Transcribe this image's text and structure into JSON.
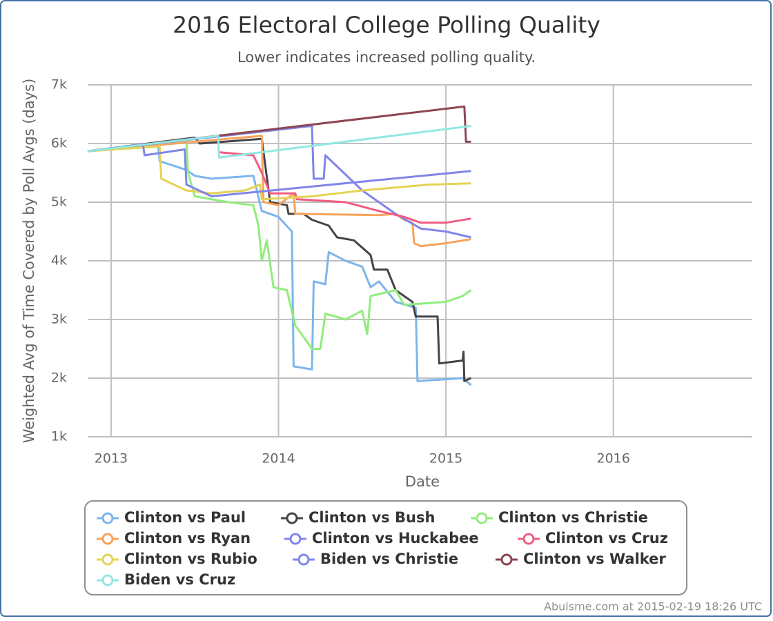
{
  "chart_data": {
    "type": "line",
    "title": "2016 Electoral College Polling Quality",
    "subtitle": "Lower indicates increased polling quality.",
    "x_label": "Date",
    "y_label": "Weighted Avg of Time Covered by Poll Avgs (days)",
    "xlim": [
      2012.86,
      2016.83
    ],
    "xticks": [
      2013,
      2014,
      2015,
      2016
    ],
    "ylim": [
      1000,
      7000
    ],
    "yticks": [
      {
        "value": 1000,
        "label": "1k"
      },
      {
        "value": 2000,
        "label": "2k"
      },
      {
        "value": 3000,
        "label": "3k"
      },
      {
        "value": 4000,
        "label": "4k"
      },
      {
        "value": 5000,
        "label": "5k"
      },
      {
        "value": 6000,
        "label": "6k"
      },
      {
        "value": 7000,
        "label": "7k"
      }
    ],
    "grid": true,
    "legend": "bottom",
    "series": [
      {
        "name": "Clinton vs Paul",
        "color": "#7cb5ec",
        "x": [
          2012.86,
          2013.28,
          2013.29,
          2013.45,
          2013.5,
          2013.6,
          2013.85,
          2013.9,
          2014.0,
          2014.08,
          2014.09,
          2014.2,
          2014.21,
          2014.28,
          2014.3,
          2014.4,
          2014.5,
          2014.55,
          2014.6,
          2014.7,
          2014.82,
          2014.83,
          2015.1,
          2015.15
        ],
        "values": [
          5870,
          6000,
          5700,
          5550,
          5450,
          5400,
          5450,
          4850,
          4750,
          4500,
          2200,
          2150,
          3650,
          3600,
          4150,
          4000,
          3900,
          3550,
          3650,
          3300,
          3200,
          1950,
          2000,
          1880
        ]
      },
      {
        "name": "Clinton vs Bush",
        "color": "#434348",
        "x": [
          2012.86,
          2013.5,
          2013.53,
          2013.9,
          2013.95,
          2014.05,
          2014.06,
          2014.15,
          2014.2,
          2014.3,
          2014.35,
          2014.45,
          2014.55,
          2014.57,
          2014.65,
          2014.7,
          2014.8,
          2014.82,
          2014.95,
          2014.96,
          2015.1,
          2015.105,
          2015.11,
          2015.15
        ],
        "values": [
          5870,
          6100,
          6000,
          6080,
          5000,
          4950,
          4800,
          4800,
          4700,
          4600,
          4400,
          4350,
          4100,
          3850,
          3850,
          3500,
          3300,
          3050,
          3050,
          2250,
          2300,
          2450,
          1950,
          2000
        ]
      },
      {
        "name": "Clinton vs Christie",
        "color": "#90ed7d",
        "x": [
          2012.86,
          2013.45,
          2013.46,
          2013.5,
          2013.7,
          2013.85,
          2013.88,
          2013.9,
          2013.93,
          2013.97,
          2014.05,
          2014.1,
          2014.2,
          2014.25,
          2014.28,
          2014.4,
          2014.5,
          2014.53,
          2014.55,
          2014.7,
          2014.75,
          2015.0,
          2015.1,
          2015.15
        ],
        "values": [
          5870,
          6050,
          5500,
          5100,
          5000,
          4950,
          4600,
          4000,
          4350,
          3550,
          3500,
          2900,
          2500,
          2500,
          3100,
          3000,
          3150,
          2750,
          3400,
          3500,
          3250,
          3300,
          3400,
          3500
        ]
      },
      {
        "name": "Clinton vs Ryan",
        "color": "#f7a35c",
        "x": [
          2012.86,
          2013.9,
          2013.91,
          2014.0,
          2014.09,
          2014.1,
          2014.6,
          2014.7,
          2014.75,
          2014.8,
          2014.81,
          2014.85,
          2015.0,
          2015.15
        ],
        "values": [
          5870,
          6130,
          5000,
          4950,
          5150,
          4800,
          4780,
          4800,
          4700,
          4650,
          4300,
          4250,
          4300,
          4370
        ]
      },
      {
        "name": "Clinton vs Huckabee",
        "color": "#8085e9",
        "x": [
          2012.86,
          2014.2,
          2014.21,
          2014.27,
          2014.28,
          2014.5,
          2014.7,
          2014.85,
          2015.0,
          2015.15
        ],
        "values": [
          5870,
          6300,
          5400,
          5400,
          5800,
          5200,
          4800,
          4550,
          4500,
          4400
        ]
      },
      {
        "name": "Clinton vs Cruz",
        "color": "#f15c80",
        "x": [
          2013.65,
          2013.85,
          2013.9,
          2013.95,
          2014.1,
          2014.11,
          2014.4,
          2014.6,
          2014.75,
          2014.85,
          2015.0,
          2015.15
        ],
        "values": [
          5850,
          5800,
          5500,
          5150,
          5150,
          5050,
          5000,
          4850,
          4750,
          4650,
          4650,
          4720
        ]
      },
      {
        "name": "Clinton vs Rubio",
        "color": "#e4d354",
        "x": [
          2012.86,
          2013.29,
          2013.3,
          2013.45,
          2013.6,
          2013.8,
          2013.89,
          2013.9,
          2014.2,
          2014.5,
          2014.9,
          2015.15
        ],
        "values": [
          5870,
          5950,
          5400,
          5200,
          5150,
          5200,
          5300,
          5050,
          5100,
          5200,
          5300,
          5320
        ]
      },
      {
        "name": "Biden vs Christie",
        "color": "#8085e9",
        "x": [
          2012.86,
          2013.19,
          2013.2,
          2013.44,
          2013.45,
          2013.6,
          2015.15
        ],
        "values": [
          5870,
          5990,
          5800,
          5900,
          5300,
          5100,
          5530
        ]
      },
      {
        "name": "Clinton vs Walker",
        "color": "#8d4653",
        "x": [
          2012.86,
          2015.11,
          2015.12,
          2015.15
        ],
        "values": [
          5870,
          6630,
          6030,
          6030
        ]
      },
      {
        "name": "Biden vs Cruz",
        "color": "#91e8e1",
        "x": [
          2012.86,
          2013.64,
          2013.645,
          2015.15
        ],
        "values": [
          5870,
          6130,
          5760,
          6300
        ]
      }
    ],
    "credit": "Abulsme.com at 2015-02-19 18:26 UTC"
  }
}
